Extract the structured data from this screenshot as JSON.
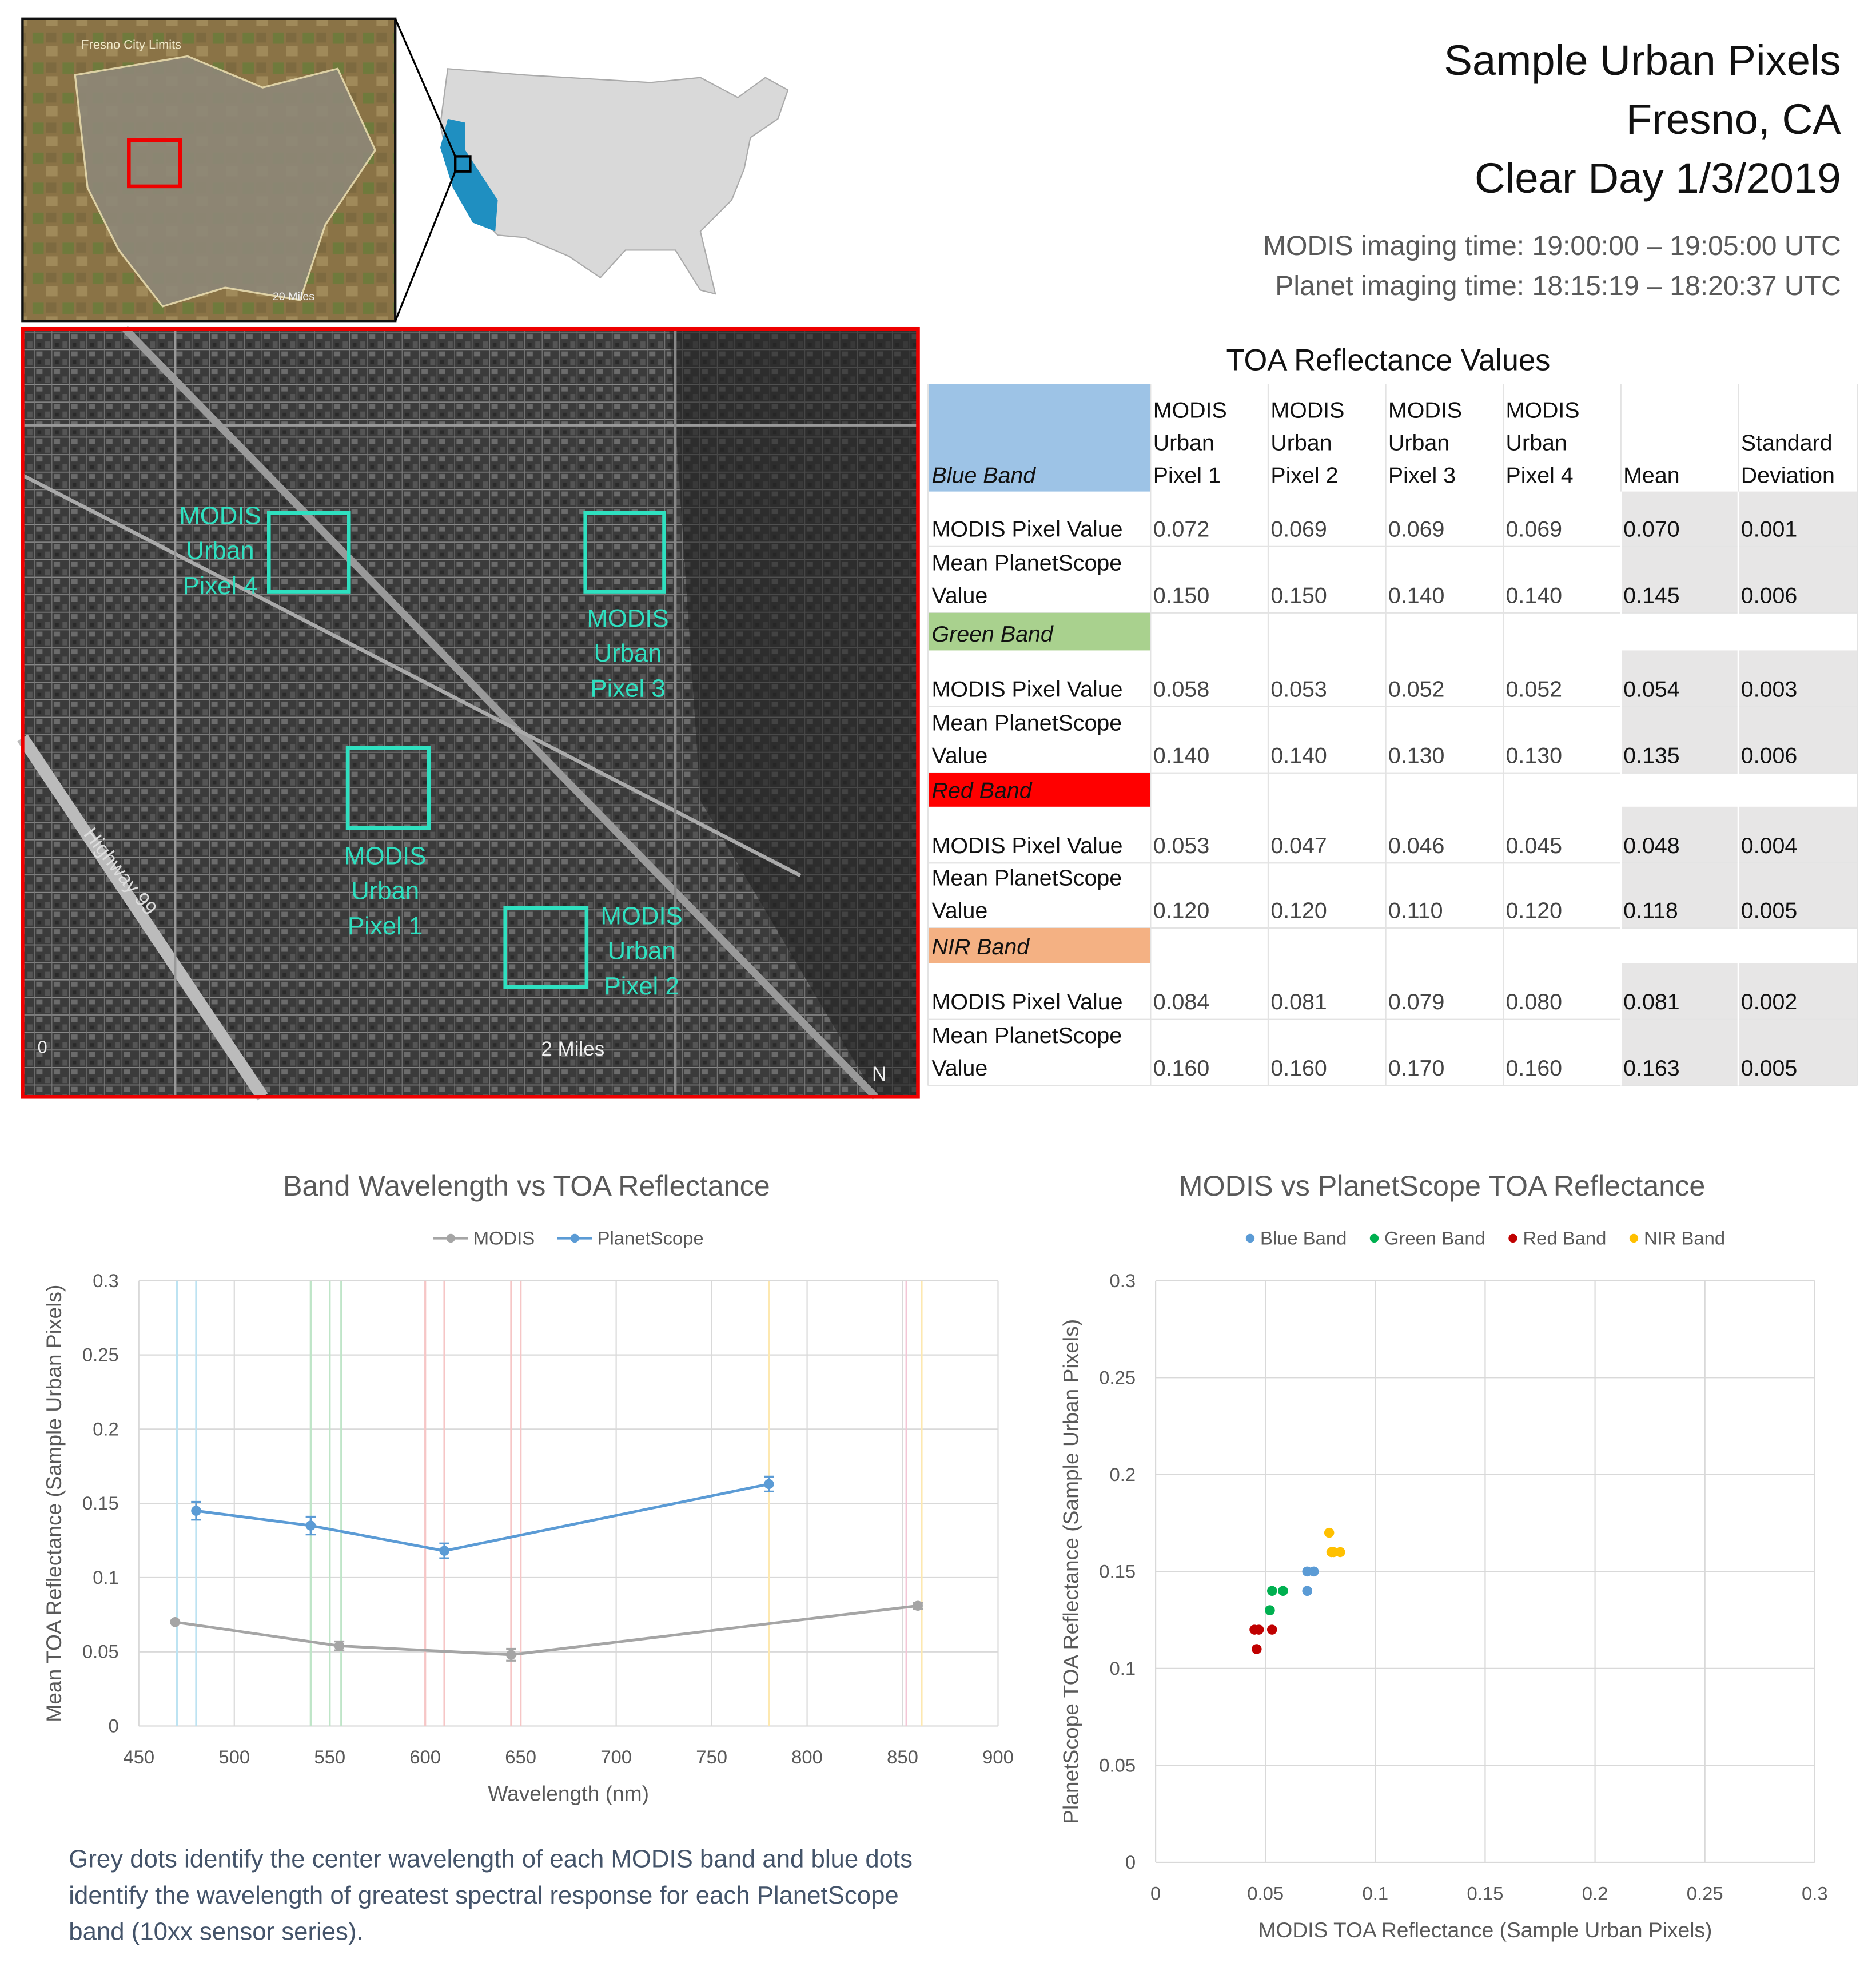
{
  "header": {
    "title_lines": [
      "Sample Urban Pixels",
      "Fresno, CA",
      "Clear Day 1/3/2019"
    ],
    "time_lines": [
      "MODIS imaging time: 19:00:00 – 19:05:00 UTC",
      "Planet imaging time: 18:15:19 – 18:20:37 UTC"
    ]
  },
  "maps": {
    "inset_label": "Fresno City Limits",
    "inset_scale": "20 Miles",
    "pixel_labels": [
      [
        "MODIS",
        "Urban",
        "Pixel 4"
      ],
      [
        "MODIS",
        "Urban",
        "Pixel 3"
      ],
      [
        "MODIS",
        "Urban",
        "Pixel 1"
      ],
      [
        "MODIS",
        "Urban",
        "Pixel 2"
      ]
    ],
    "highway": "Highway 99",
    "scale": "2 Miles",
    "scale_zero": "0",
    "north": "N"
  },
  "table": {
    "title": "TOA Reflectance Values",
    "columns": [
      [
        "MODIS",
        "Urban",
        "Pixel 1"
      ],
      [
        "MODIS",
        "Urban",
        "Pixel 2"
      ],
      [
        "MODIS",
        "Urban",
        "Pixel 3"
      ],
      [
        "MODIS",
        "Urban",
        "Pixel 4"
      ],
      [
        "Mean"
      ],
      [
        "Standard",
        "Deviation"
      ]
    ],
    "bands": [
      {
        "name": "Blue Band",
        "color": "#9dc3e6",
        "rows": [
          {
            "label": [
              "MODIS Pixel Value"
            ],
            "values": [
              "0.072",
              "0.069",
              "0.069",
              "0.069",
              "0.070",
              "0.001"
            ]
          },
          {
            "label": [
              "Mean PlanetScope",
              "Value"
            ],
            "values": [
              "0.150",
              "0.150",
              "0.140",
              "0.140",
              "0.145",
              "0.006"
            ]
          }
        ]
      },
      {
        "name": "Green Band",
        "color": "#a9d18e",
        "rows": [
          {
            "label": [
              "MODIS Pixel Value"
            ],
            "values": [
              "0.058",
              "0.053",
              "0.052",
              "0.052",
              "0.054",
              "0.003"
            ]
          },
          {
            "label": [
              "Mean PlanetScope",
              "Value"
            ],
            "values": [
              "0.140",
              "0.140",
              "0.130",
              "0.130",
              "0.135",
              "0.006"
            ]
          }
        ]
      },
      {
        "name": "Red Band",
        "color": "#ff0000",
        "rows": [
          {
            "label": [
              "MODIS Pixel Value"
            ],
            "values": [
              "0.053",
              "0.047",
              "0.046",
              "0.045",
              "0.048",
              "0.004"
            ]
          },
          {
            "label": [
              "Mean PlanetScope",
              "Value"
            ],
            "values": [
              "0.120",
              "0.120",
              "0.110",
              "0.120",
              "0.118",
              "0.005"
            ]
          }
        ]
      },
      {
        "name": "NIR Band",
        "color": "#f4b183",
        "rows": [
          {
            "label": [
              "MODIS Pixel Value"
            ],
            "values": [
              "0.084",
              "0.081",
              "0.079",
              "0.080",
              "0.081",
              "0.002"
            ]
          },
          {
            "label": [
              "Mean PlanetScope",
              "Value"
            ],
            "values": [
              "0.160",
              "0.160",
              "0.170",
              "0.160",
              "0.163",
              "0.005"
            ]
          }
        ]
      }
    ]
  },
  "chart_data": [
    {
      "type": "line",
      "title": "Band Wavelength vs TOA Reflectance",
      "x_label": "Wavelength (nm)",
      "y_label": "Mean TOA Reflectance (Sample Urban Pixels)",
      "xlim": [
        450,
        900
      ],
      "xticks": [
        450,
        500,
        550,
        600,
        650,
        700,
        750,
        800,
        850,
        900
      ],
      "ylim": [
        0,
        0.3
      ],
      "yticks": [
        0,
        0.05,
        0.1,
        0.15,
        0.2,
        0.25,
        0.3
      ],
      "grid": true,
      "legend": "top",
      "band_lines": {
        "x": [
          470,
          480,
          540,
          550,
          556,
          600,
          610,
          645,
          650,
          780,
          852,
          860
        ],
        "colors": [
          "#bde3f2",
          "#bde3f2",
          "#bfe5c8",
          "#bfe5c8",
          "#bfe5c8",
          "#f6c6c6",
          "#f6c6c6",
          "#f6c6c6",
          "#f6c6c6",
          "#fde8b0",
          "#f3c6d6",
          "#fde8b0"
        ]
      },
      "series": [
        {
          "name": "MODIS",
          "color": "#a5a5a5",
          "x": [
            469,
            555,
            645,
            858
          ],
          "values": [
            0.07,
            0.054,
            0.048,
            0.081
          ],
          "errors": [
            0.001,
            0.003,
            0.004,
            0.002
          ]
        },
        {
          "name": "PlanetScope",
          "color": "#5b9bd5",
          "x": [
            480,
            540,
            610,
            780
          ],
          "values": [
            0.145,
            0.135,
            0.118,
            0.163
          ],
          "errors": [
            0.006,
            0.006,
            0.005,
            0.005
          ]
        }
      ]
    },
    {
      "type": "scatter",
      "title": "MODIS vs PlanetScope TOA Reflectance",
      "x_label": "MODIS TOA Reflectance (Sample Urban Pixels)",
      "y_label": "PlanetScope TOA Reflectance (Sample Urban Pixels)",
      "xlim": [
        0,
        0.3
      ],
      "xticks": [
        0,
        0.05,
        0.1,
        0.15,
        0.2,
        0.25,
        0.3
      ],
      "ylim": [
        0,
        0.3
      ],
      "yticks": [
        0,
        0.05,
        0.1,
        0.15,
        0.2,
        0.25,
        0.3
      ],
      "grid": true,
      "legend": "top",
      "series": [
        {
          "name": "Blue Band",
          "color": "#5b9bd5",
          "x": [
            0.072,
            0.069,
            0.069,
            0.069
          ],
          "values": [
            0.15,
            0.15,
            0.14,
            0.14
          ]
        },
        {
          "name": "Green Band",
          "color": "#00b050",
          "x": [
            0.058,
            0.053,
            0.052,
            0.052
          ],
          "values": [
            0.14,
            0.14,
            0.13,
            0.13
          ]
        },
        {
          "name": "Red Band",
          "color": "#c00000",
          "x": [
            0.053,
            0.047,
            0.046,
            0.045
          ],
          "values": [
            0.12,
            0.12,
            0.11,
            0.12
          ]
        },
        {
          "name": "NIR Band",
          "color": "#ffc000",
          "x": [
            0.084,
            0.081,
            0.079,
            0.08
          ],
          "values": [
            0.16,
            0.16,
            0.17,
            0.16
          ]
        }
      ]
    }
  ],
  "caption": [
    "Grey dots identify the center wavelength of each MODIS band and blue dots",
    "identify the wavelength of greatest spectral response for each PlanetScope",
    "band (10xx sensor series)."
  ]
}
